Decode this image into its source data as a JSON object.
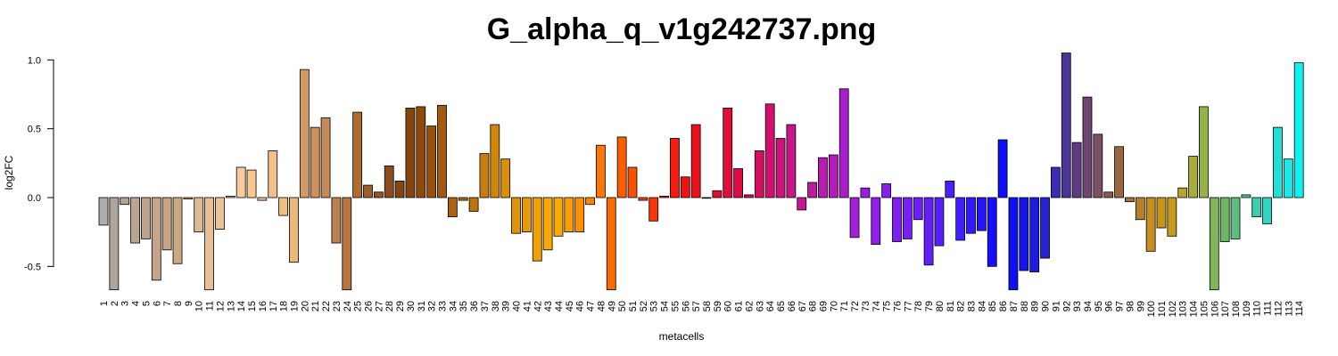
{
  "chart_data": {
    "type": "bar",
    "title": "G_alpha_q_v1g242737.png",
    "xlabel": "metacells",
    "ylabel": "log2FC",
    "ylim": [
      -0.67,
      1.05
    ],
    "yticks": [
      -0.5,
      0.0,
      0.5,
      1.0
    ],
    "ytick_labels": [
      "-0.5",
      "0.0",
      "0.5",
      "1.0"
    ],
    "grid": false,
    "categories": [
      "1",
      "2",
      "3",
      "4",
      "5",
      "6",
      "7",
      "8",
      "9",
      "10",
      "11",
      "12",
      "13",
      "14",
      "15",
      "16",
      "17",
      "18",
      "19",
      "20",
      "21",
      "22",
      "23",
      "24",
      "25",
      "26",
      "27",
      "28",
      "29",
      "30",
      "31",
      "32",
      "33",
      "34",
      "35",
      "36",
      "37",
      "38",
      "39",
      "40",
      "41",
      "42",
      "43",
      "44",
      "45",
      "46",
      "47",
      "48",
      "49",
      "50",
      "51",
      "52",
      "53",
      "54",
      "55",
      "56",
      "57",
      "58",
      "59",
      "60",
      "61",
      "62",
      "63",
      "64",
      "65",
      "66",
      "67",
      "68",
      "69",
      "70",
      "71",
      "72",
      "73",
      "74",
      "75",
      "76",
      "77",
      "78",
      "79",
      "80",
      "81",
      "82",
      "83",
      "84",
      "85",
      "86",
      "87",
      "88",
      "89",
      "90",
      "91",
      "92",
      "93",
      "94",
      "95",
      "96",
      "97",
      "98",
      "99",
      "100",
      "101",
      "102",
      "103",
      "104",
      "105",
      "106",
      "107",
      "108",
      "109",
      "110",
      "111",
      "112",
      "113",
      "114"
    ],
    "values": [
      -0.2,
      -0.67,
      -0.05,
      -0.33,
      -0.3,
      -0.6,
      -0.38,
      -0.48,
      -0.01,
      -0.25,
      -0.67,
      -0.23,
      0.01,
      0.22,
      0.2,
      -0.02,
      0.34,
      -0.13,
      -0.47,
      0.93,
      0.51,
      0.58,
      -0.33,
      -0.67,
      0.62,
      0.09,
      0.04,
      0.23,
      0.12,
      0.65,
      0.66,
      0.52,
      0.67,
      -0.14,
      -0.02,
      -0.1,
      0.32,
      0.53,
      0.28,
      -0.26,
      -0.25,
      -0.46,
      -0.38,
      -0.28,
      -0.25,
      -0.25,
      -0.05,
      0.38,
      -0.67,
      0.44,
      0.22,
      -0.02,
      -0.17,
      0.01,
      0.43,
      0.15,
      0.53,
      0.0,
      0.05,
      0.65,
      0.21,
      0.02,
      0.34,
      0.68,
      0.43,
      0.53,
      -0.09,
      0.11,
      0.29,
      0.31,
      0.79,
      -0.29,
      0.07,
      -0.34,
      0.1,
      -0.32,
      -0.3,
      -0.16,
      -0.49,
      -0.35,
      0.12,
      -0.31,
      -0.26,
      -0.24,
      -0.5,
      0.42,
      -0.67,
      -0.53,
      -0.54,
      -0.44,
      0.22,
      1.05,
      0.4,
      0.73,
      0.46,
      0.04,
      0.37,
      -0.03,
      -0.16,
      -0.39,
      -0.22,
      -0.28,
      0.07,
      0.3,
      0.66,
      -0.67,
      -0.32,
      -0.3,
      0.02,
      -0.14,
      -0.19,
      0.51,
      0.28,
      0.98
    ],
    "colors": [
      "#adadad",
      "#aea59c",
      "#b1a596",
      "#b8a592",
      "#bea48e",
      "#c4a48c",
      "#c5a584",
      "#caa980",
      "#d3b08e",
      "#dcba92",
      "#e7c098",
      "#ebc497",
      "#f3c99c",
      "#f7cb9f",
      "#f9c891",
      "#f5c492",
      "#f2c088",
      "#f0bd82",
      "#eab979",
      "#d29b66",
      "#cb9260",
      "#c48a58",
      "#bc8150",
      "#b5773f",
      "#ad6c30",
      "#9f5d27",
      "#955421",
      "#8b4b1c",
      "#824516",
      "#86450e",
      "#8f4a0b",
      "#99520c",
      "#a25a10",
      "#ab6210",
      "#b46b0e",
      "#bd740d",
      "#c67d0c",
      "#cf860b",
      "#d88f0a",
      "#e09509",
      "#e89b08",
      "#f0a107",
      "#f7a706",
      "#fbaa06",
      "#fc9d05",
      "#fc9004",
      "#fc8304",
      "#fc7603",
      "#fb6a03",
      "#fb5d03",
      "#fa5003",
      "#f94406",
      "#f6370a",
      "#f42a0d",
      "#f21d10",
      "#ef1114",
      "#ec0f1c",
      "#e90e26",
      "#e60d31",
      "#e30c3b",
      "#e00b45",
      "#db0c52",
      "#d60e5f",
      "#d1116c",
      "#cc1379",
      "#c71686",
      "#c21893",
      "#bd1aa0",
      "#b81cad",
      "#b31eba",
      "#a91ecc",
      "#a01fd9",
      "#981fe2",
      "#901fe9",
      "#881fef",
      "#7f1ff3",
      "#761ff6",
      "#6c1ff8",
      "#621ffa",
      "#581ffb",
      "#4c1ffc",
      "#3f1ffd",
      "#3119fd",
      "#2314fd",
      "#160efd",
      "#0d0cfc",
      "#1010f5",
      "#1616eb",
      "#1c1ce0",
      "#2323d4",
      "#3b2bb7",
      "#4b3598",
      "#5e3c85",
      "#6e4573",
      "#7b4f64",
      "#8a5a52",
      "#9a6742",
      "#a87435",
      "#b6812a",
      "#c48e20",
      "#c99516",
      "#c79b19",
      "#b9a52c",
      "#a6ad3d",
      "#94b24c",
      "#82b45d",
      "#6fb667",
      "#5ebe80",
      "#4cc695",
      "#3dcead",
      "#2ed6c3",
      "#22dfd6",
      "#19e8e4",
      "#10f0f0"
    ]
  }
}
